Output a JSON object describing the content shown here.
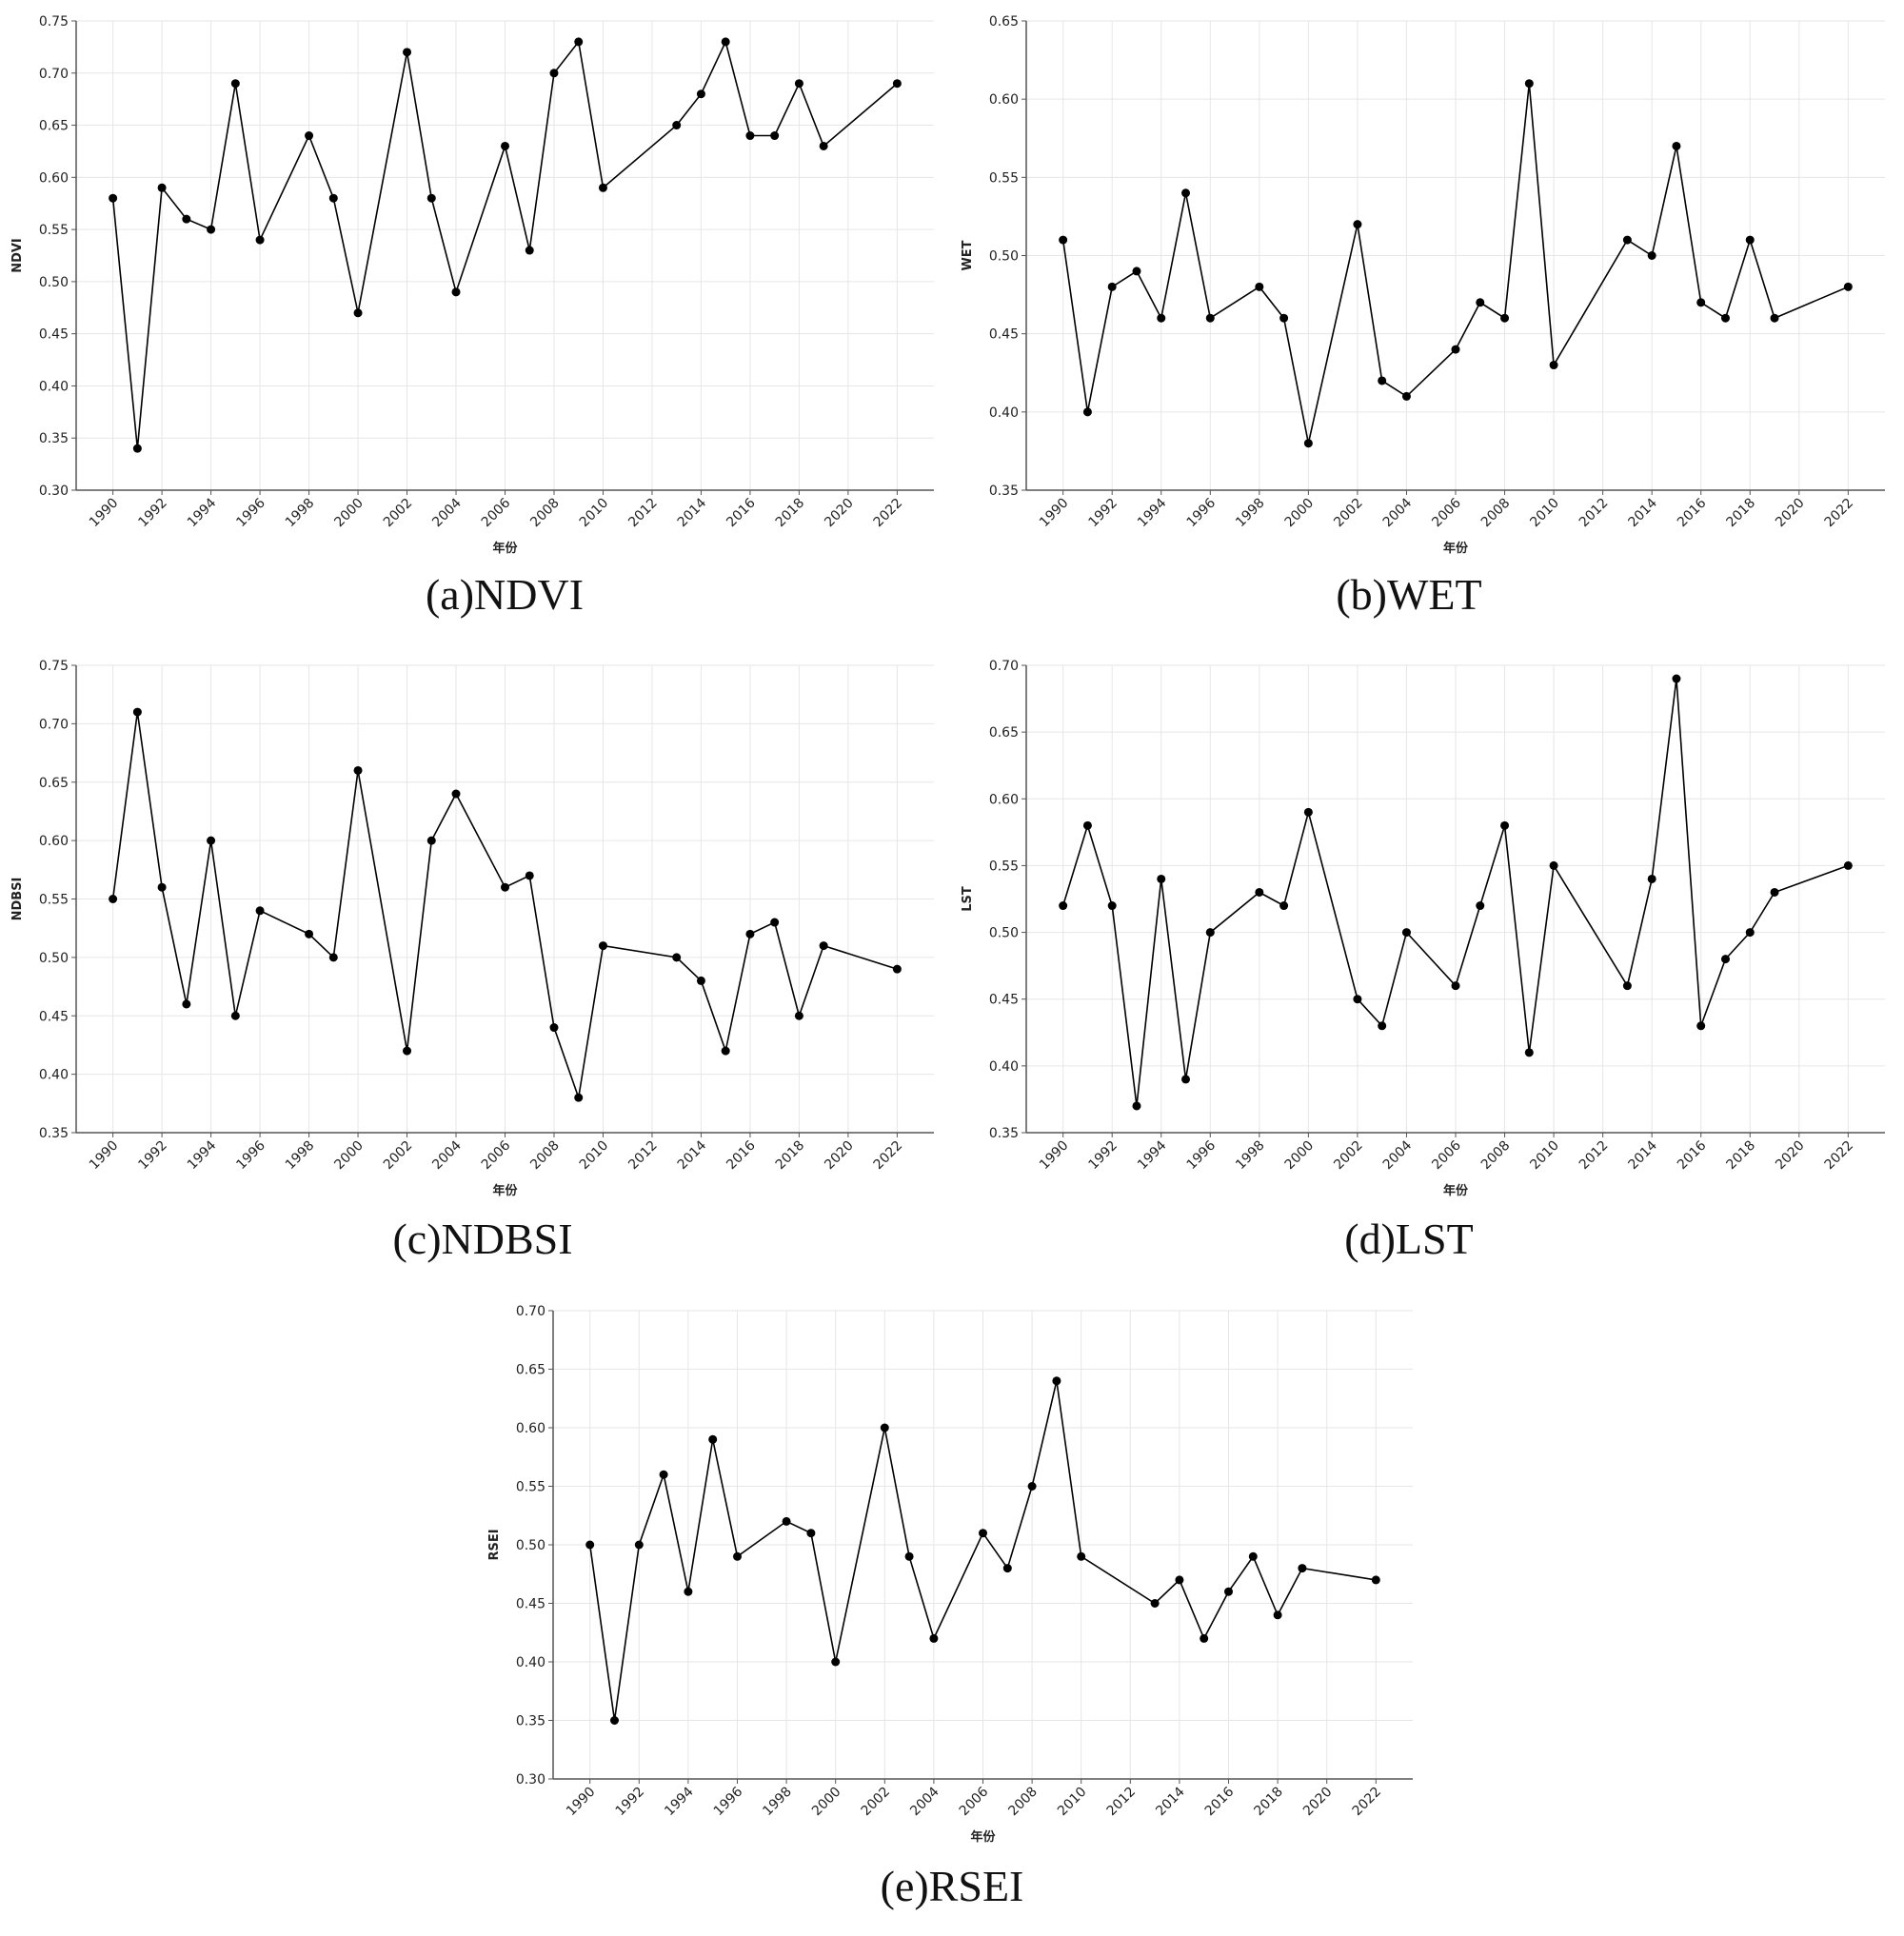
{
  "chart_data": [
    {
      "type": "line",
      "title": "(a)NDVI",
      "x_label": "年份",
      "y_label": "NDVI",
      "color": "#000000",
      "grid": true,
      "x": [
        1990,
        1991,
        1992,
        1993,
        1994,
        1995,
        1996,
        1998,
        1999,
        2000,
        2002,
        2003,
        2004,
        2006,
        2007,
        2008,
        2009,
        2010,
        2013,
        2014,
        2015,
        2016,
        2017,
        2018,
        2019,
        2022
      ],
      "values": [
        0.58,
        0.34,
        0.59,
        0.56,
        0.55,
        0.69,
        0.54,
        0.64,
        0.58,
        0.47,
        0.72,
        0.58,
        0.49,
        0.63,
        0.53,
        0.7,
        0.73,
        0.59,
        0.65,
        0.68,
        0.73,
        0.64,
        0.64,
        0.69,
        0.63,
        0.69
      ],
      "xlim": [
        1988.5,
        2023.5
      ],
      "ylim": [
        0.3,
        0.75
      ],
      "xticks": [
        1990,
        1992,
        1994,
        1996,
        1998,
        2000,
        2002,
        2004,
        2006,
        2008,
        2010,
        2012,
        2014,
        2016,
        2018,
        2020,
        2022
      ],
      "yticks": [
        {
          "value": 0.3,
          "label": "0.30"
        },
        {
          "value": 0.35,
          "label": "0.35"
        },
        {
          "value": 0.4,
          "label": "0.40"
        },
        {
          "value": 0.45,
          "label": "0.45"
        },
        {
          "value": 0.5,
          "label": "0.50"
        },
        {
          "value": 0.55,
          "label": "0.55"
        },
        {
          "value": 0.6,
          "label": "0.60"
        },
        {
          "value": 0.65,
          "label": "0.65"
        },
        {
          "value": 0.7,
          "label": "0.70"
        },
        {
          "value": 0.75,
          "label": "0.75"
        }
      ]
    },
    {
      "type": "line",
      "title": "(b)WET",
      "x_label": "年份",
      "y_label": "WET",
      "color": "#000000",
      "grid": true,
      "x": [
        1990,
        1991,
        1992,
        1993,
        1994,
        1995,
        1996,
        1998,
        1999,
        2000,
        2002,
        2003,
        2004,
        2006,
        2007,
        2008,
        2009,
        2010,
        2013,
        2014,
        2015,
        2016,
        2017,
        2018,
        2019,
        2022
      ],
      "values": [
        0.51,
        0.4,
        0.48,
        0.49,
        0.46,
        0.54,
        0.46,
        0.48,
        0.46,
        0.38,
        0.52,
        0.42,
        0.41,
        0.44,
        0.47,
        0.46,
        0.61,
        0.43,
        0.51,
        0.5,
        0.57,
        0.47,
        0.46,
        0.51,
        0.46,
        0.48
      ],
      "xlim": [
        1988.5,
        2023.5
      ],
      "ylim": [
        0.35,
        0.65
      ],
      "xticks": [
        1990,
        1992,
        1994,
        1996,
        1998,
        2000,
        2002,
        2004,
        2006,
        2008,
        2010,
        2012,
        2014,
        2016,
        2018,
        2020,
        2022
      ],
      "yticks": [
        {
          "value": 0.35,
          "label": "0.35"
        },
        {
          "value": 0.4,
          "label": "0.40"
        },
        {
          "value": 0.45,
          "label": "0.45"
        },
        {
          "value": 0.5,
          "label": "0.50"
        },
        {
          "value": 0.55,
          "label": "0.55"
        },
        {
          "value": 0.6,
          "label": "0.60"
        },
        {
          "value": 0.65,
          "label": "0.65"
        }
      ]
    },
    {
      "type": "line",
      "title": "(c)NDBSI",
      "x_label": "年份",
      "y_label": "NDBSI",
      "color": "#000000",
      "grid": true,
      "x": [
        1990,
        1991,
        1992,
        1993,
        1994,
        1995,
        1996,
        1998,
        1999,
        2000,
        2002,
        2003,
        2004,
        2006,
        2007,
        2008,
        2009,
        2010,
        2013,
        2014,
        2015,
        2016,
        2017,
        2018,
        2019,
        2022
      ],
      "values": [
        0.55,
        0.71,
        0.56,
        0.46,
        0.6,
        0.45,
        0.54,
        0.52,
        0.5,
        0.66,
        0.42,
        0.6,
        0.64,
        0.56,
        0.57,
        0.44,
        0.38,
        0.51,
        0.5,
        0.48,
        0.42,
        0.52,
        0.53,
        0.45,
        0.51,
        0.49
      ],
      "xlim": [
        1988.5,
        2023.5
      ],
      "ylim": [
        0.35,
        0.75
      ],
      "xticks": [
        1990,
        1992,
        1994,
        1996,
        1998,
        2000,
        2002,
        2004,
        2006,
        2008,
        2010,
        2012,
        2014,
        2016,
        2018,
        2020,
        2022
      ],
      "yticks": [
        {
          "value": 0.35,
          "label": "0.35"
        },
        {
          "value": 0.4,
          "label": "0.40"
        },
        {
          "value": 0.45,
          "label": "0.45"
        },
        {
          "value": 0.5,
          "label": "0.50"
        },
        {
          "value": 0.55,
          "label": "0.55"
        },
        {
          "value": 0.6,
          "label": "0.60"
        },
        {
          "value": 0.65,
          "label": "0.65"
        },
        {
          "value": 0.7,
          "label": "0.70"
        },
        {
          "value": 0.75,
          "label": "0.75"
        }
      ]
    },
    {
      "type": "line",
      "title": "(d)LST",
      "x_label": "年份",
      "y_label": "LST",
      "color": "#000000",
      "grid": true,
      "x": [
        1990,
        1991,
        1992,
        1993,
        1994,
        1995,
        1996,
        1998,
        1999,
        2000,
        2002,
        2003,
        2004,
        2006,
        2007,
        2008,
        2009,
        2010,
        2013,
        2014,
        2015,
        2016,
        2017,
        2018,
        2019,
        2022
      ],
      "values": [
        0.52,
        0.58,
        0.52,
        0.37,
        0.54,
        0.39,
        0.5,
        0.53,
        0.52,
        0.59,
        0.45,
        0.43,
        0.5,
        0.46,
        0.52,
        0.58,
        0.41,
        0.55,
        0.46,
        0.54,
        0.69,
        0.43,
        0.48,
        0.5,
        0.53,
        0.55
      ],
      "xlim": [
        1988.5,
        2023.5
      ],
      "ylim": [
        0.35,
        0.7
      ],
      "xticks": [
        1990,
        1992,
        1994,
        1996,
        1998,
        2000,
        2002,
        2004,
        2006,
        2008,
        2010,
        2012,
        2014,
        2016,
        2018,
        2020,
        2022
      ],
      "yticks": [
        {
          "value": 0.35,
          "label": "0.35"
        },
        {
          "value": 0.4,
          "label": "0.40"
        },
        {
          "value": 0.45,
          "label": "0.45"
        },
        {
          "value": 0.5,
          "label": "0.50"
        },
        {
          "value": 0.55,
          "label": "0.55"
        },
        {
          "value": 0.6,
          "label": "0.60"
        },
        {
          "value": 0.65,
          "label": "0.65"
        },
        {
          "value": 0.7,
          "label": "0.70"
        }
      ]
    },
    {
      "type": "line",
      "title": "(e)RSEI",
      "x_label": "年份",
      "y_label": "RSEI",
      "color": "#000000",
      "grid": true,
      "x": [
        1990,
        1991,
        1992,
        1993,
        1994,
        1995,
        1996,
        1998,
        1999,
        2000,
        2002,
        2003,
        2004,
        2006,
        2007,
        2008,
        2009,
        2010,
        2013,
        2014,
        2015,
        2016,
        2017,
        2018,
        2019,
        2022
      ],
      "values": [
        0.5,
        0.35,
        0.5,
        0.56,
        0.46,
        0.59,
        0.49,
        0.52,
        0.51,
        0.4,
        0.6,
        0.49,
        0.42,
        0.51,
        0.48,
        0.55,
        0.64,
        0.49,
        0.45,
        0.47,
        0.42,
        0.46,
        0.49,
        0.44,
        0.48,
        0.47
      ],
      "xlim": [
        1988.5,
        2023.5
      ],
      "ylim": [
        0.3,
        0.7
      ],
      "xticks": [
        1990,
        1992,
        1994,
        1996,
        1998,
        2000,
        2002,
        2004,
        2006,
        2008,
        2010,
        2012,
        2014,
        2016,
        2018,
        2020,
        2022
      ],
      "yticks": [
        {
          "value": 0.3,
          "label": "0.30"
        },
        {
          "value": 0.35,
          "label": "0.35"
        },
        {
          "value": 0.4,
          "label": "0.40"
        },
        {
          "value": 0.45,
          "label": "0.45"
        },
        {
          "value": 0.5,
          "label": "0.50"
        },
        {
          "value": 0.55,
          "label": "0.55"
        },
        {
          "value": 0.6,
          "label": "0.60"
        },
        {
          "value": 0.65,
          "label": "0.65"
        },
        {
          "value": 0.7,
          "label": "0.70"
        }
      ]
    }
  ]
}
